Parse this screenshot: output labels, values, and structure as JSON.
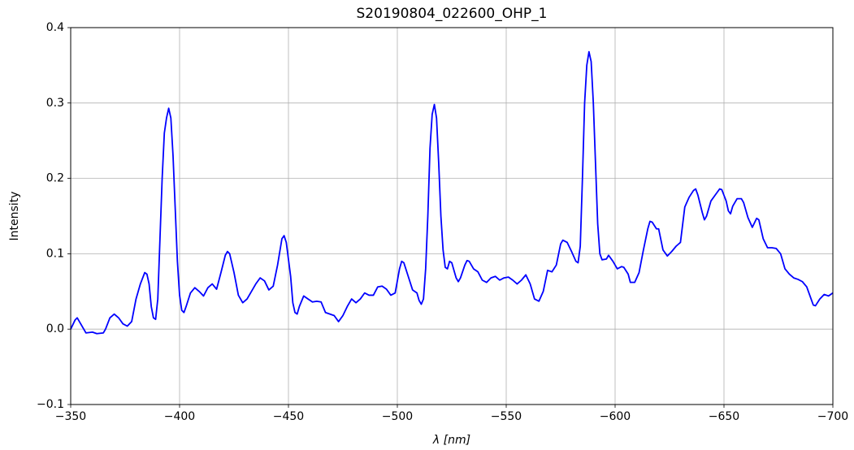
{
  "chart_data": {
    "type": "line",
    "title": "S20190804_022600_OHP_1",
    "x_label": "λ [nm]",
    "y_label": "Intensity",
    "xlim": [
      -350,
      -700
    ],
    "xticks": [
      {
        "value": -350,
        "label": "−350"
      },
      {
        "value": -400,
        "label": "−400"
      },
      {
        "value": -450,
        "label": "−450"
      },
      {
        "value": -500,
        "label": "−500"
      },
      {
        "value": -550,
        "label": "−550"
      },
      {
        "value": -600,
        "label": "−600"
      },
      {
        "value": -650,
        "label": "−650"
      },
      {
        "value": -700,
        "label": "−700"
      }
    ],
    "ylim": [
      -0.1,
      0.4
    ],
    "yticks": [
      {
        "value": -0.1,
        "label": "−0.1"
      },
      {
        "value": 0,
        "label": "0.0"
      },
      0.1,
      0.2,
      0.3,
      0.4
    ],
    "grid": true,
    "series": [
      {
        "color": "#0000ff",
        "x": [
          -350,
          -352,
          -353,
          -355,
          -357,
          -360,
          -362,
          -365,
          -366,
          -368,
          -370,
          -372,
          -374,
          -376,
          -378,
          -380,
          -382,
          -384,
          -385,
          -386,
          -387,
          -388,
          -389,
          -390,
          -391,
          -392,
          -393,
          -394,
          -395,
          -396,
          -397,
          -398,
          -399,
          -400,
          -401,
          -402,
          -403,
          -405,
          -407,
          -409,
          -411,
          -413,
          -415,
          -417,
          -419,
          -421,
          -422,
          -423,
          -425,
          -427,
          -429,
          -431,
          -433,
          -435,
          -437,
          -439,
          -441,
          -443,
          -445,
          -447,
          -448,
          -449,
          -451,
          -452,
          -453,
          -454,
          -455,
          -457,
          -459,
          -461,
          -463,
          -465,
          -467,
          -469,
          -471,
          -473,
          -475,
          -477,
          -479,
          -481,
          -483,
          -485,
          -487,
          -489,
          -491,
          -493,
          -495,
          -497,
          -499,
          -501,
          -502,
          -503,
          -505,
          -507,
          -509,
          -510,
          -511,
          -512,
          -513,
          -514,
          -515,
          -516,
          -517,
          -518,
          -519,
          -520,
          -521,
          -522,
          -523,
          -524,
          -525,
          -526,
          -527,
          -528,
          -529,
          -531,
          -532,
          -533,
          -535,
          -537,
          -539,
          -541,
          -543,
          -545,
          -547,
          -549,
          -551,
          -553,
          -555,
          -557,
          -559,
          -561,
          -563,
          -565,
          -567,
          -569,
          -571,
          -573,
          -575,
          -576,
          -578,
          -580,
          -582,
          -583,
          -584,
          -585,
          -586,
          -587,
          -588,
          -589,
          -590,
          -591,
          -592,
          -593,
          -594,
          -596,
          -597,
          -599,
          -601,
          -603,
          -604,
          -606,
          -607,
          -609,
          -611,
          -613,
          -615,
          -616,
          -617,
          -619,
          -620,
          -622,
          -624,
          -626,
          -628,
          -630,
          -632,
          -634,
          -636,
          -637,
          -638,
          -640,
          -641,
          -642,
          -644,
          -646,
          -648,
          -649,
          -651,
          -652,
          -653,
          -654,
          -656,
          -658,
          -659,
          -661,
          -663,
          -665,
          -666,
          -668,
          -670,
          -672,
          -674,
          -676,
          -678,
          -680,
          -682,
          -684,
          -686,
          -688,
          -690,
          -691,
          -692,
          -694,
          -696,
          -698,
          -700
        ],
        "values": [
          0.0,
          0.012,
          0.015,
          0.005,
          -0.005,
          -0.004,
          -0.006,
          -0.005,
          0.0,
          0.015,
          0.02,
          0.015,
          0.007,
          0.004,
          0.01,
          0.04,
          0.06,
          0.075,
          0.073,
          0.06,
          0.03,
          0.015,
          0.013,
          0.04,
          0.12,
          0.2,
          0.26,
          0.28,
          0.293,
          0.28,
          0.23,
          0.16,
          0.09,
          0.045,
          0.025,
          0.022,
          0.03,
          0.048,
          0.055,
          0.05,
          0.044,
          0.055,
          0.06,
          0.053,
          0.075,
          0.098,
          0.103,
          0.1,
          0.075,
          0.045,
          0.035,
          0.04,
          0.05,
          0.06,
          0.068,
          0.064,
          0.052,
          0.057,
          0.085,
          0.12,
          0.124,
          0.115,
          0.07,
          0.035,
          0.022,
          0.02,
          0.03,
          0.044,
          0.04,
          0.036,
          0.037,
          0.036,
          0.022,
          0.02,
          0.018,
          0.01,
          0.018,
          0.03,
          0.04,
          0.035,
          0.04,
          0.048,
          0.045,
          0.045,
          0.056,
          0.057,
          0.053,
          0.045,
          0.048,
          0.08,
          0.09,
          0.088,
          0.07,
          0.052,
          0.048,
          0.038,
          0.033,
          0.04,
          0.08,
          0.15,
          0.24,
          0.285,
          0.298,
          0.28,
          0.22,
          0.15,
          0.105,
          0.082,
          0.08,
          0.09,
          0.088,
          0.078,
          0.068,
          0.063,
          0.068,
          0.085,
          0.091,
          0.09,
          0.08,
          0.076,
          0.065,
          0.062,
          0.068,
          0.07,
          0.065,
          0.068,
          0.069,
          0.065,
          0.06,
          0.065,
          0.072,
          0.06,
          0.04,
          0.037,
          0.05,
          0.078,
          0.076,
          0.085,
          0.113,
          0.118,
          0.115,
          0.103,
          0.09,
          0.088,
          0.11,
          0.2,
          0.3,
          0.35,
          0.368,
          0.355,
          0.3,
          0.22,
          0.14,
          0.1,
          0.092,
          0.093,
          0.098,
          0.09,
          0.08,
          0.083,
          0.082,
          0.073,
          0.062,
          0.062,
          0.075,
          0.105,
          0.133,
          0.143,
          0.142,
          0.133,
          0.133,
          0.105,
          0.097,
          0.103,
          0.11,
          0.115,
          0.162,
          0.175,
          0.184,
          0.186,
          0.178,
          0.155,
          0.145,
          0.15,
          0.17,
          0.178,
          0.186,
          0.185,
          0.17,
          0.157,
          0.153,
          0.163,
          0.173,
          0.173,
          0.168,
          0.148,
          0.135,
          0.147,
          0.145,
          0.12,
          0.108,
          0.108,
          0.107,
          0.1,
          0.08,
          0.073,
          0.068,
          0.066,
          0.063,
          0.056,
          0.04,
          0.032,
          0.031,
          0.04,
          0.046,
          0.044,
          0.048
        ]
      }
    ]
  }
}
